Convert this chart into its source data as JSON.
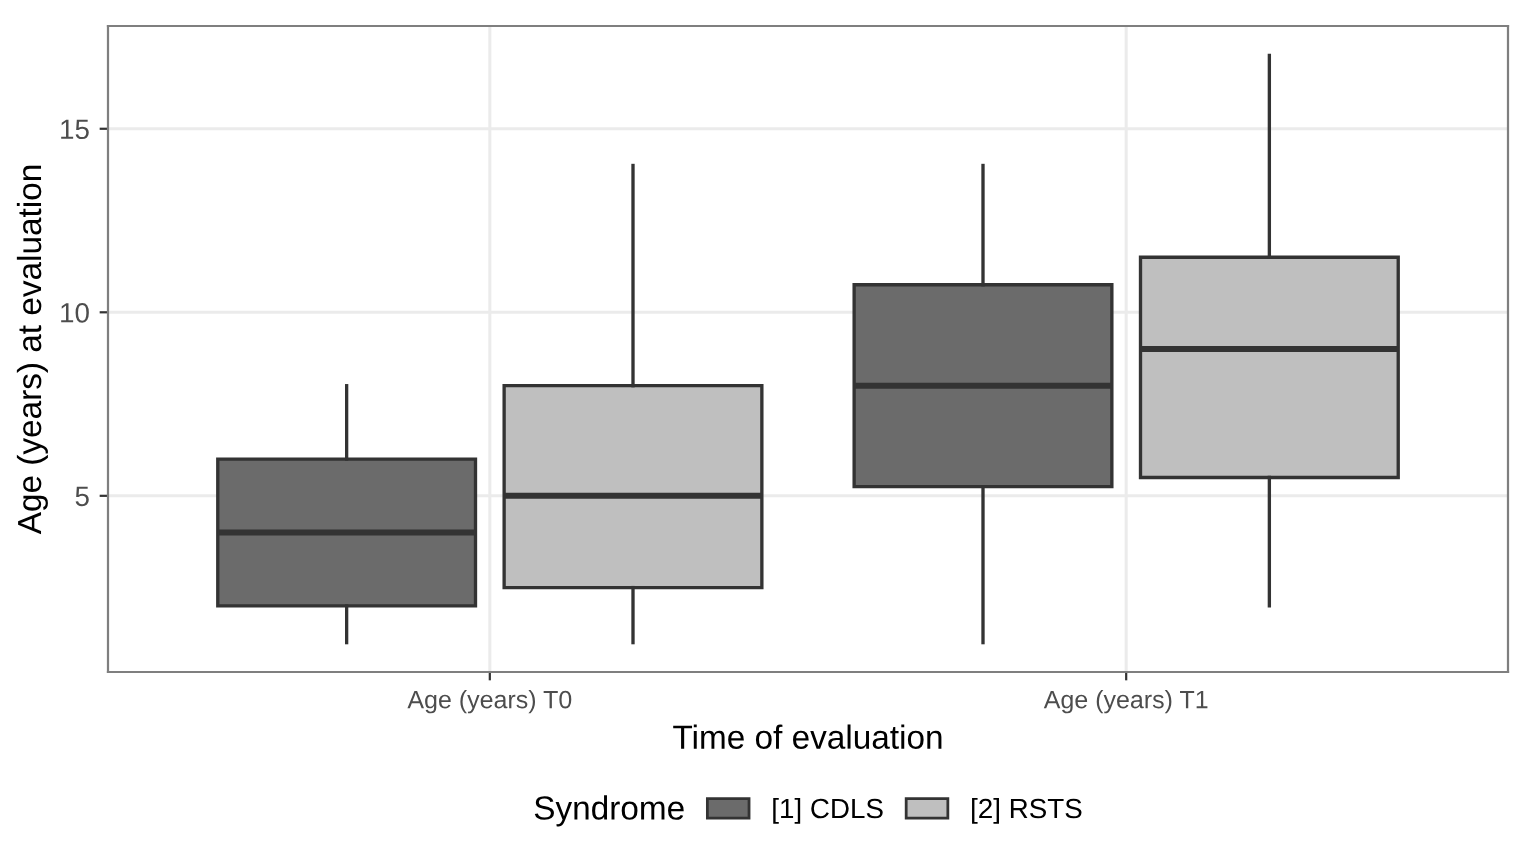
{
  "chart_data": {
    "type": "box",
    "xlabel": "Time of evaluation",
    "ylabel": "Age (years) at evaluation",
    "legend_title": "Syndrome",
    "categories": [
      "Age (years) T0",
      "Age (years) T1"
    ],
    "series": [
      {
        "name": "[1] CDLS",
        "color": "#6b6b6b",
        "boxes": [
          {
            "low": 1,
            "q1": 2,
            "median": 4,
            "q3": 6,
            "high": 8
          },
          {
            "low": 1,
            "q1": 5.25,
            "median": 8,
            "q3": 10.75,
            "high": 14
          }
        ]
      },
      {
        "name": "[2] RSTS",
        "color": "#bfbfbf",
        "boxes": [
          {
            "low": 1,
            "q1": 2.5,
            "median": 5,
            "q3": 8,
            "high": 14
          },
          {
            "low": 2,
            "q1": 5.5,
            "median": 9,
            "q3": 11.5,
            "high": 17
          }
        ]
      }
    ],
    "ylim": [
      0.2,
      17.8
    ],
    "yticks": [
      5,
      10,
      15
    ],
    "grid": true,
    "legend": "bottom"
  }
}
